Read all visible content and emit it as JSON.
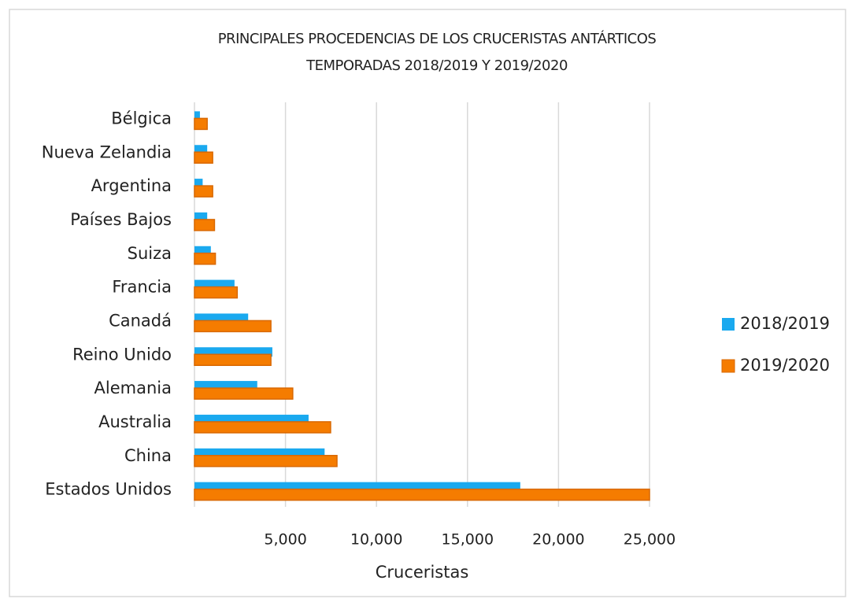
{
  "chart_data": {
    "type": "hbar",
    "title": "PRINCIPALES PROCEDENCIAS DE LOS CRUCERISTAS ANTÁRTICOS",
    "subtitle": "TEMPORADAS 2018/2019 Y 2019/2020",
    "x_label": "Cruceristas",
    "categories": [
      "Bélgica",
      "Nueva Zelandia",
      "Argentina",
      "Países Bajos",
      "Suiza",
      "Francia",
      "Canadá",
      "Reino Unido",
      "Alemania",
      "Australia",
      "China",
      "Estados Unidos"
    ],
    "series": [
      {
        "name": "2018/2019",
        "color": "#1aa9ef",
        "values": [
          300,
          700,
          450,
          700,
          900,
          2200,
          2950,
          4280,
          3450,
          6270,
          7150,
          17900
        ]
      },
      {
        "name": "2019/2020",
        "color": "#f57c00",
        "values": [
          700,
          1000,
          1000,
          1100,
          1150,
          2350,
          4200,
          4200,
          5400,
          7480,
          7830,
          25000
        ]
      }
    ],
    "xlim": [
      0,
      25000
    ],
    "xticks": [
      {
        "value": 5000,
        "label": "5,000"
      },
      {
        "value": 10000,
        "label": "10,000"
      },
      {
        "value": 15000,
        "label": "15,000"
      },
      {
        "value": 20000,
        "label": "20,000"
      },
      {
        "value": 25000,
        "label": "25,000"
      }
    ],
    "grid": true,
    "legend": "right"
  }
}
